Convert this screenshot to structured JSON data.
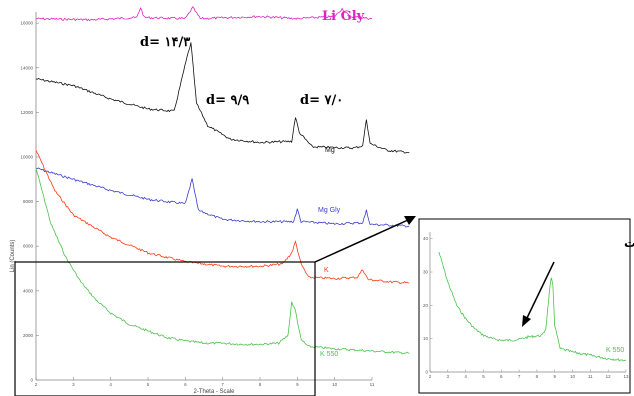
{
  "colors": {
    "li_gly": "#dd22c4",
    "mg": "#111111",
    "mg_gly": "#3b3ccf",
    "k": "#ff3a12",
    "k550": "#4cc24c"
  },
  "chart_data": [
    {
      "type": "line",
      "xlabel": "2-Theta - Scale",
      "ylabel": "Lin (Counts)",
      "xlim": [
        2,
        11
      ],
      "ylim": [
        0,
        16500
      ],
      "x_ticks": [
        2,
        3,
        4,
        5,
        6,
        7,
        8,
        9,
        10,
        11
      ],
      "y_ticks": [
        0,
        2000,
        4000,
        6000,
        8000,
        10000,
        12000,
        14000,
        16000
      ],
      "series": [
        {
          "name": "Li Gly",
          "color": "li_gly",
          "points": [
            [
              2.0,
              16200
            ],
            [
              3.5,
              16150
            ],
            [
              4.7,
              16250
            ],
            [
              4.8,
              16700
            ],
            [
              4.9,
              16250
            ],
            [
              6.0,
              16200
            ],
            [
              6.2,
              16700
            ],
            [
              6.4,
              16200
            ],
            [
              7.2,
              16250
            ],
            [
              8.0,
              16300
            ],
            [
              9.0,
              16200
            ],
            [
              10.0,
              16300
            ],
            [
              10.2,
              16650
            ],
            [
              10.4,
              16300
            ],
            [
              11.0,
              16200
            ]
          ]
        },
        {
          "name": "Mg",
          "color": "mg",
          "points": [
            [
              2.0,
              13500
            ],
            [
              3.0,
              13200
            ],
            [
              4.0,
              12600
            ],
            [
              5.0,
              12150
            ],
            [
              5.7,
              12050
            ],
            [
              6.05,
              14500
            ],
            [
              6.15,
              15100
            ],
            [
              6.3,
              12400
            ],
            [
              6.6,
              11400
            ],
            [
              7.2,
              10800
            ],
            [
              8.0,
              10650
            ],
            [
              8.85,
              10700
            ],
            [
              8.95,
              11800
            ],
            [
              9.05,
              11100
            ],
            [
              9.4,
              10450
            ],
            [
              10.5,
              10400
            ],
            [
              10.75,
              10500
            ],
            [
              10.85,
              11700
            ],
            [
              10.95,
              10600
            ],
            [
              11.4,
              10300
            ],
            [
              12.0,
              10200
            ]
          ]
        },
        {
          "name": "Mg Gly",
          "color": "mg_gly",
          "points": [
            [
              2.0,
              9500
            ],
            [
              3.0,
              9000
            ],
            [
              4.0,
              8500
            ],
            [
              5.0,
              8100
            ],
            [
              6.0,
              7900
            ],
            [
              6.18,
              9000
            ],
            [
              6.35,
              7600
            ],
            [
              7.0,
              7200
            ],
            [
              8.0,
              7100
            ],
            [
              8.9,
              7100
            ],
            [
              9.0,
              7650
            ],
            [
              9.1,
              7100
            ],
            [
              10.0,
              7000
            ],
            [
              10.75,
              7050
            ],
            [
              10.85,
              7600
            ],
            [
              10.95,
              6980
            ],
            [
              12.0,
              6900
            ]
          ]
        },
        {
          "name": "K",
          "color": "k",
          "points": [
            [
              2.0,
              10300
            ],
            [
              2.5,
              8500
            ],
            [
              3.0,
              7400
            ],
            [
              3.5,
              6900
            ],
            [
              4.0,
              6400
            ],
            [
              5.0,
              5700
            ],
            [
              6.0,
              5300
            ],
            [
              7.0,
              5100
            ],
            [
              8.0,
              5100
            ],
            [
              8.6,
              5200
            ],
            [
              8.85,
              5700
            ],
            [
              8.95,
              6200
            ],
            [
              9.1,
              5200
            ],
            [
              9.3,
              4600
            ],
            [
              10.0,
              4550
            ],
            [
              10.6,
              4600
            ],
            [
              10.75,
              4950
            ],
            [
              10.9,
              4500
            ],
            [
              11.5,
              4400
            ],
            [
              12.0,
              4350
            ]
          ]
        },
        {
          "name": "K 550",
          "color": "k550",
          "points": [
            [
              2.0,
              9500
            ],
            [
              2.4,
              7000
            ],
            [
              2.8,
              5500
            ],
            [
              3.2,
              4400
            ],
            [
              3.6,
              3600
            ],
            [
              4.0,
              3000
            ],
            [
              4.5,
              2500
            ],
            [
              5.0,
              2200
            ],
            [
              5.5,
              1900
            ],
            [
              6.0,
              1750
            ],
            [
              6.5,
              1650
            ],
            [
              7.0,
              1650
            ],
            [
              7.5,
              1600
            ],
            [
              8.0,
              1600
            ],
            [
              8.5,
              1650
            ],
            [
              8.75,
              2000
            ],
            [
              8.85,
              3500
            ],
            [
              8.95,
              3100
            ],
            [
              9.1,
              1800
            ],
            [
              9.3,
              1500
            ],
            [
              10.0,
              1400
            ],
            [
              11.0,
              1300
            ],
            [
              12.0,
              1200
            ]
          ]
        }
      ],
      "annotations": [
        {
          "text": "d= ۱۴/۳",
          "x": 6.15
        },
        {
          "text": "d= ۹/۹",
          "x": 8.95
        },
        {
          "text": "d= ۷/۰",
          "x": 10.85
        }
      ],
      "legend_labels": [
        "Li Gly",
        "Mg",
        "Mg Gly",
        "K",
        "K 550"
      ]
    },
    {
      "type": "line",
      "xlim": [
        2,
        13
      ],
      "ylim": [
        0,
        42
      ],
      "x_ticks": [
        2,
        3,
        4,
        5,
        6,
        7,
        8,
        9,
        10,
        11,
        12,
        13
      ],
      "y_ticks": [
        0,
        10,
        20,
        30,
        40
      ],
      "series": [
        {
          "name": "K 550",
          "color": "k550",
          "points": [
            [
              2.5,
              36
            ],
            [
              3.0,
              27
            ],
            [
              3.5,
              20
            ],
            [
              4.0,
              16
            ],
            [
              4.5,
              13
            ],
            [
              5.0,
              11
            ],
            [
              5.5,
              10
            ],
            [
              6.0,
              9.5
            ],
            [
              6.5,
              9.5
            ],
            [
              7.0,
              9.8
            ],
            [
              7.5,
              10.5
            ],
            [
              8.0,
              10.8
            ],
            [
              8.3,
              11
            ],
            [
              8.5,
              13
            ],
            [
              8.7,
              24
            ],
            [
              8.8,
              28
            ],
            [
              8.9,
              26
            ],
            [
              9.0,
              14
            ],
            [
              9.3,
              7
            ],
            [
              10.0,
              6
            ],
            [
              11.0,
              5
            ],
            [
              12.0,
              4
            ],
            [
              13.0,
              3.5
            ]
          ]
        }
      ],
      "annotation": "هیدروکسی بین لایه‌ای اسمکتیت"
    }
  ]
}
